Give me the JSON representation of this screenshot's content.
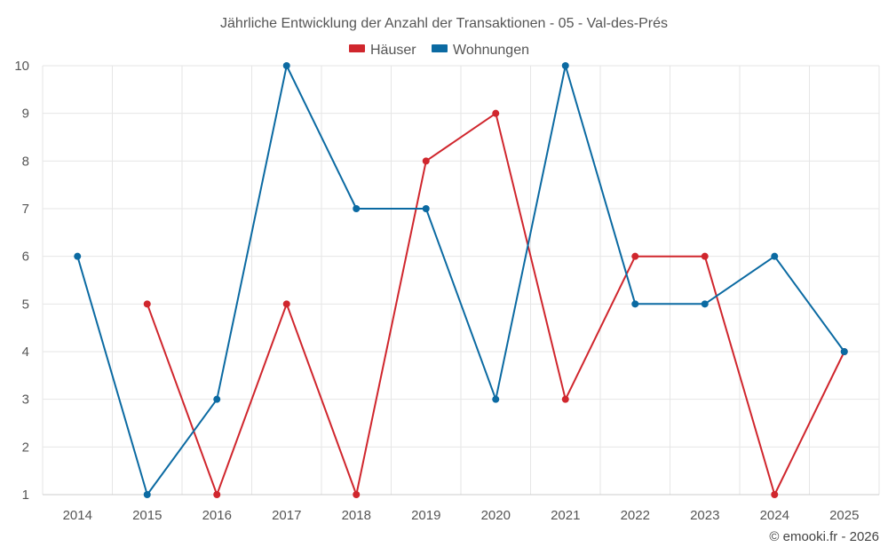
{
  "chart_data": {
    "type": "line",
    "title": "Jährliche Entwicklung der Anzahl der Transaktionen - 05 - Val-des-Prés",
    "categories": [
      "2014",
      "2015",
      "2016",
      "2017",
      "2018",
      "2019",
      "2020",
      "2021",
      "2022",
      "2023",
      "2024",
      "2025"
    ],
    "ylim": [
      1,
      10
    ],
    "yticks": [
      1,
      2,
      3,
      4,
      5,
      6,
      7,
      8,
      9,
      10
    ],
    "grid": true,
    "legend_position": "top-center",
    "series": [
      {
        "name": "Häuser",
        "color": "#d0262d",
        "values": [
          null,
          5,
          1,
          5,
          1,
          8,
          9,
          3,
          6,
          6,
          1,
          4
        ]
      },
      {
        "name": "Wohnungen",
        "color": "#0b6aa2",
        "values": [
          6,
          1,
          3,
          10,
          7,
          7,
          3,
          10,
          5,
          5,
          6,
          4
        ]
      }
    ]
  },
  "credit": "© emooki.fr - 2026"
}
